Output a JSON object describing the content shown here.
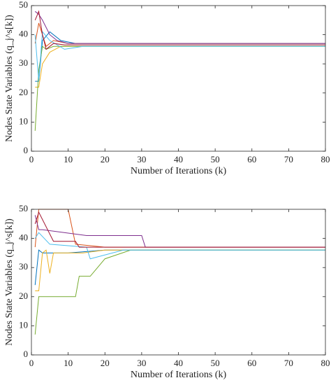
{
  "chart_data": [
    {
      "type": "line",
      "xlabel": "Number of Iterations (k)",
      "ylabel": "Nodes State Variables (q_j^s[k])",
      "xlim": [
        0,
        80
      ],
      "ylim": [
        0,
        50
      ],
      "xticks": [
        0,
        10,
        20,
        30,
        40,
        50,
        60,
        70,
        80
      ],
      "yticks": [
        0,
        10,
        20,
        30,
        40,
        50
      ],
      "series": [
        {
          "color": "#0072BD",
          "x": [
            1,
            2,
            3,
            5,
            8,
            12,
            80
          ],
          "values": [
            24,
            24,
            38,
            41,
            38,
            37,
            37
          ]
        },
        {
          "color": "#D95319",
          "x": [
            1,
            2,
            4,
            6,
            10,
            80
          ],
          "values": [
            37,
            44,
            36,
            38,
            37,
            37
          ]
        },
        {
          "color": "#EDB120",
          "x": [
            1,
            2,
            3,
            5,
            8,
            80
          ],
          "values": [
            22,
            22,
            30,
            34,
            36,
            36
          ]
        },
        {
          "color": "#7E2F8E",
          "x": [
            1,
            2,
            3,
            5,
            7,
            10,
            80
          ],
          "values": [
            48,
            47,
            45,
            40,
            38,
            37,
            37
          ]
        },
        {
          "color": "#77AC30",
          "x": [
            1,
            2,
            3,
            4,
            6,
            10,
            80
          ],
          "values": [
            7,
            28,
            36,
            35,
            36,
            36,
            36
          ]
        },
        {
          "color": "#4DBEEE",
          "x": [
            1,
            2,
            3,
            5,
            9,
            14,
            80
          ],
          "values": [
            40,
            24,
            41,
            38,
            35,
            36,
            36
          ]
        },
        {
          "color": "#A2142F",
          "x": [
            1,
            2,
            3,
            4,
            6,
            9,
            80
          ],
          "values": [
            45,
            48,
            40,
            35,
            37,
            36.5,
            36.5
          ]
        }
      ]
    },
    {
      "type": "line",
      "xlabel": "Number of Iterations (k)",
      "ylabel": "Nodes State Variables (q_j^s[k])",
      "xlim": [
        0,
        80
      ],
      "ylim": [
        0,
        50
      ],
      "xticks": [
        0,
        10,
        20,
        30,
        40,
        50,
        60,
        70,
        80
      ],
      "yticks": [
        0,
        10,
        20,
        30,
        40,
        50
      ],
      "series": [
        {
          "color": "#0072BD",
          "x": [
            1,
            2,
            3,
            10,
            20,
            30,
            80
          ],
          "values": [
            24,
            36,
            35,
            35,
            36,
            36,
            36
          ]
        },
        {
          "color": "#D95319",
          "x": [
            1,
            2,
            10,
            12,
            20,
            30,
            80
          ],
          "values": [
            37,
            50,
            50,
            38,
            37,
            37,
            37
          ]
        },
        {
          "color": "#EDB120",
          "x": [
            1,
            2,
            3,
            4,
            5,
            6,
            14,
            20,
            80
          ],
          "values": [
            22,
            22,
            35,
            36,
            28,
            35,
            35,
            36,
            36
          ]
        },
        {
          "color": "#7E2F8E",
          "x": [
            1,
            2,
            3,
            15,
            30,
            31,
            80
          ],
          "values": [
            48,
            43,
            43,
            41,
            41,
            37,
            37
          ]
        },
        {
          "color": "#77AC30",
          "x": [
            1,
            2,
            3,
            12,
            13,
            16,
            20,
            27,
            80
          ],
          "values": [
            7,
            20,
            20,
            20,
            27,
            27,
            33,
            36,
            36
          ]
        },
        {
          "color": "#4DBEEE",
          "x": [
            1,
            2,
            5,
            15,
            16,
            25,
            80
          ],
          "values": [
            40,
            42,
            38,
            37,
            33,
            36,
            36
          ]
        },
        {
          "color": "#A2142F",
          "x": [
            1,
            2,
            6,
            12,
            13,
            35,
            45,
            80
          ],
          "values": [
            45,
            49,
            39,
            39,
            37,
            37,
            37,
            37
          ]
        }
      ]
    }
  ]
}
